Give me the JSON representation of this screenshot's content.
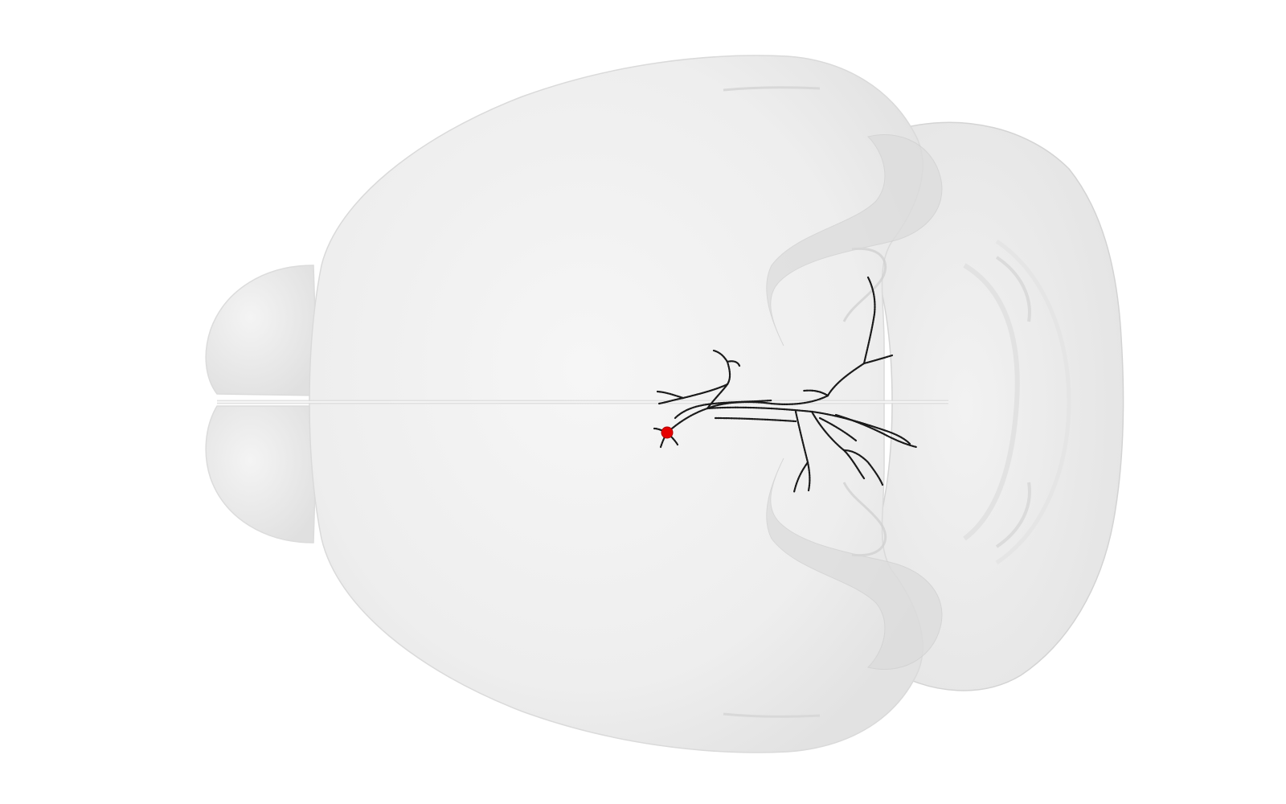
{
  "scene": {
    "view": "dorsal",
    "background_color": "#ffffff",
    "brain_mesh_color": "#eeeeee",
    "brain_mesh_shadow_color": "#d9d9d9",
    "neuron_color": "#1a1a1a",
    "soma_color": "#e60000"
  },
  "structures": [
    {
      "name": "olfactory-bulb-left-icon"
    },
    {
      "name": "olfactory-bulb-right-icon"
    },
    {
      "name": "cerebrum-icon"
    },
    {
      "name": "midbrain-icon"
    },
    {
      "name": "cerebellum-icon"
    },
    {
      "name": "neuron-reconstruction-icon"
    },
    {
      "name": "soma-icon"
    }
  ]
}
